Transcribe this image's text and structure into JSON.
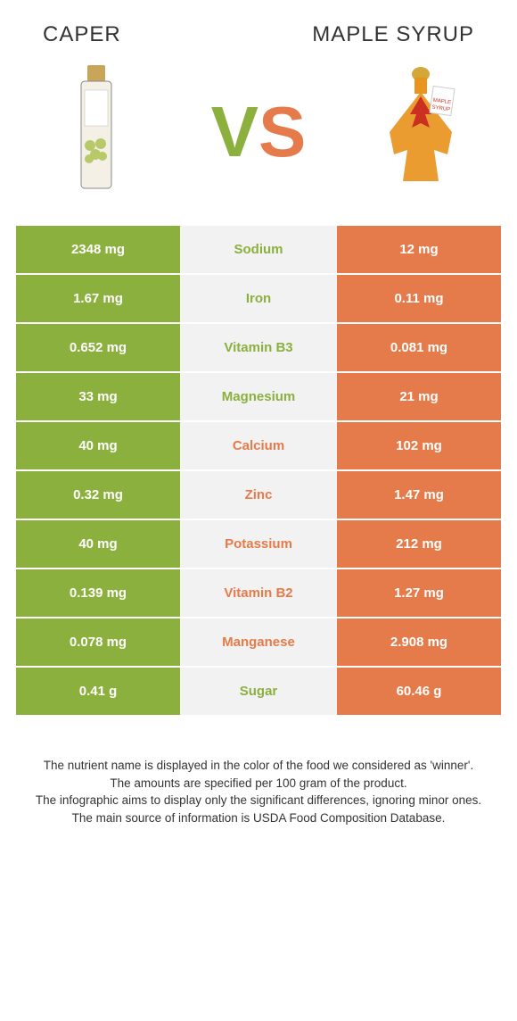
{
  "header": {
    "left_title": "CAPER",
    "right_title": "MAPLE SYRUP"
  },
  "vs": {
    "v": "V",
    "s": "S"
  },
  "colors": {
    "left": "#8bb03e",
    "right": "#e57b4a",
    "mid_bg": "#f2f2f2"
  },
  "rows": [
    {
      "nutrient": "Sodium",
      "left": "2348 mg",
      "right": "12 mg",
      "winner": "left"
    },
    {
      "nutrient": "Iron",
      "left": "1.67 mg",
      "right": "0.11 mg",
      "winner": "left"
    },
    {
      "nutrient": "Vitamin B3",
      "left": "0.652 mg",
      "right": "0.081 mg",
      "winner": "left"
    },
    {
      "nutrient": "Magnesium",
      "left": "33 mg",
      "right": "21 mg",
      "winner": "left"
    },
    {
      "nutrient": "Calcium",
      "left": "40 mg",
      "right": "102 mg",
      "winner": "right"
    },
    {
      "nutrient": "Zinc",
      "left": "0.32 mg",
      "right": "1.47 mg",
      "winner": "right"
    },
    {
      "nutrient": "Potassium",
      "left": "40 mg",
      "right": "212 mg",
      "winner": "right"
    },
    {
      "nutrient": "Vitamin B2",
      "left": "0.139 mg",
      "right": "1.27 mg",
      "winner": "right"
    },
    {
      "nutrient": "Manganese",
      "left": "0.078 mg",
      "right": "2.908 mg",
      "winner": "right"
    },
    {
      "nutrient": "Sugar",
      "left": "0.41 g",
      "right": "60.46 g",
      "winner": "left"
    }
  ],
  "footer": {
    "line1": "The nutrient name is displayed in the color of the food we considered as 'winner'.",
    "line2": "The amounts are specified per 100 gram of the product.",
    "line3": "The infographic aims to display only the significant differences, ignoring minor ones.",
    "line4": "The main source of information is USDA Food Composition Database."
  }
}
